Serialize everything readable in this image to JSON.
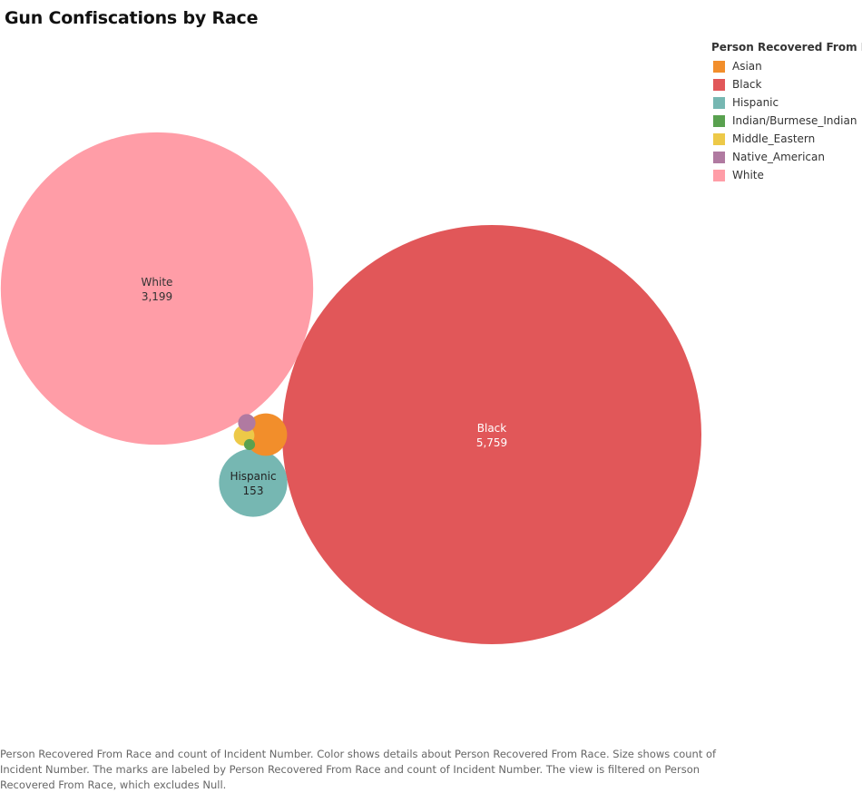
{
  "title": "Gun Confiscations by Race",
  "legend": {
    "title": "Person Recovered From Race",
    "items": [
      {
        "label": "Asian",
        "color": "#f28e2b"
      },
      {
        "label": "Black",
        "color": "#e15759"
      },
      {
        "label": "Hispanic",
        "color": "#76b7b2"
      },
      {
        "label": "Indian/Burmese_Indian",
        "color": "#59a14f"
      },
      {
        "label": "Middle_Eastern",
        "color": "#edc948"
      },
      {
        "label": "Native_American",
        "color": "#b07aa1"
      },
      {
        "label": "White",
        "color": "#ff9da7"
      }
    ]
  },
  "caption": "Person Recovered From Race and count of Incident Number.  Color shows details about Person Recovered From Race.  Size shows count of Incident Number.  The marks are labeled by Person Recovered From Race and count of Incident Number. The view is filtered on Person Recovered From Race, which excludes Null.",
  "chart_data": {
    "type": "bubble",
    "size_measure": "count of Incident Number",
    "color_dimension": "Person Recovered From Race",
    "points": [
      {
        "category": "Black",
        "value": 5759,
        "value_label": "5,759",
        "color": "#e15759",
        "label_color": "#ffffff",
        "labeled": true
      },
      {
        "category": "White",
        "value": 3199,
        "value_label": "3,199",
        "color": "#ff9da7",
        "label_color": "#333333",
        "labeled": true
      },
      {
        "category": "Hispanic",
        "value": 153,
        "value_label": "153",
        "color": "#76b7b2",
        "label_color": "#222222",
        "labeled": true
      },
      {
        "category": "Asian",
        "value": 59,
        "color": "#f28e2b",
        "labeled": false
      },
      {
        "category": "Middle_Eastern",
        "value": 14,
        "color": "#edc948",
        "labeled": false
      },
      {
        "category": "Native_American",
        "value": 10,
        "color": "#b07aa1",
        "labeled": false
      },
      {
        "category": "Indian/Burmese_Indian",
        "value": 4,
        "color": "#59a14f",
        "labeled": false
      }
    ]
  }
}
